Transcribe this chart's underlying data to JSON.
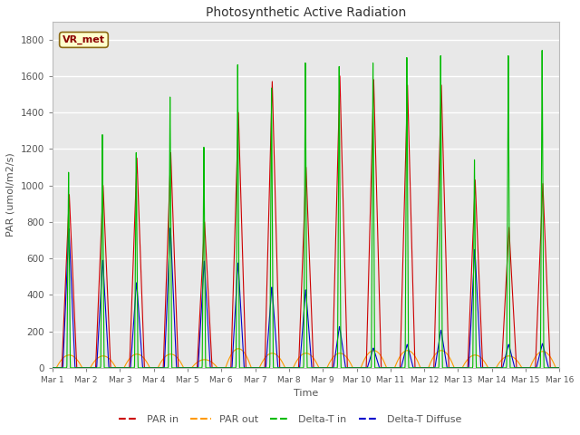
{
  "title": "Photosynthetic Active Radiation",
  "ylabel": "PAR (umol/m2/s)",
  "xlabel": "Time",
  "ylim": [
    0,
    1900
  ],
  "yticks": [
    0,
    200,
    400,
    600,
    800,
    1000,
    1200,
    1400,
    1600,
    1800
  ],
  "bg_color": "#e8e8e8",
  "plot_bg": "#f0f0f0",
  "label_color": "#555555",
  "site_label": "VR_met",
  "line_colors": {
    "PAR in": "#cc0000",
    "PAR out": "#ff9900",
    "Delta-T in": "#00bb00",
    "Delta-T Diffuse": "#0000cc"
  },
  "n_days": 15,
  "ppd": 144,
  "day_peaks_par_in": [
    950,
    1000,
    1150,
    1180,
    800,
    1400,
    1570,
    1100,
    1600,
    1580,
    1550,
    1550,
    1030,
    770,
    1010
  ],
  "day_peaks_par_out": [
    70,
    65,
    75,
    75,
    45,
    105,
    80,
    80,
    80,
    95,
    95,
    95,
    70,
    65,
    90
  ],
  "day_peaks_delta_t_in": [
    1090,
    1300,
    1200,
    1510,
    1230,
    1690,
    1560,
    1700,
    1680,
    1700,
    1730,
    1740,
    1160,
    1740,
    1770
  ],
  "day_peaks_delta_t_diffuse": [
    775,
    600,
    475,
    780,
    595,
    585,
    450,
    435,
    230,
    110,
    130,
    210,
    660,
    130,
    135
  ],
  "x_tick_labels": [
    "Mar 1",
    "Mar 2",
    "Mar 3",
    "Mar 4",
    "Mar 5",
    "Mar 6",
    "Mar 7",
    "Mar 8",
    "Mar 9",
    "Mar 10",
    "Mar 11",
    "Mar 12",
    "Mar 13",
    "Mar 14",
    "Mar 15",
    "Mar 16"
  ],
  "figsize": [
    6.4,
    4.8
  ],
  "dpi": 100
}
